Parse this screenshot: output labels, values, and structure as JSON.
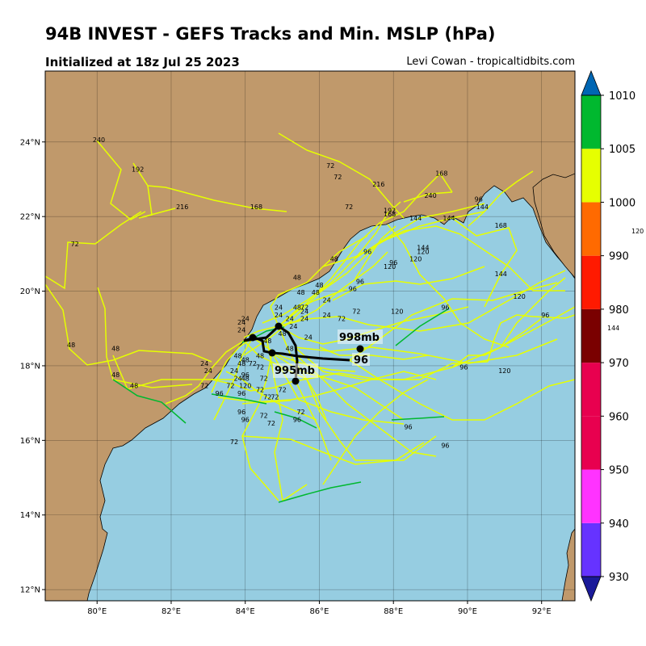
{
  "header": {
    "title": "94B INVEST - GEFS Tracks and Min. MSLP (hPa)",
    "init": "Initialized at 18z Jul 25 2023",
    "credit": "Levi Cowan - tropicaltidbits.com"
  },
  "colors": {
    "land": "#c0996b",
    "ocean": "#96cde1",
    "member_track": "#e6ff00",
    "mean_track": "#000000",
    "weak_segment": "#00b82f"
  },
  "map": {
    "lon_range": [
      78.6,
      92.9
    ],
    "lat_range": [
      11.7,
      25.9
    ],
    "lon_ticks": [
      "80°E",
      "82°E",
      "84°E",
      "86°E",
      "88°E",
      "90°E",
      "92°E"
    ],
    "lat_ticks": [
      "12°N",
      "14°N",
      "16°N",
      "18°N",
      "20°N",
      "22°N",
      "24°N"
    ],
    "grid": true,
    "mean_track_labels": [
      "998mb",
      "96",
      "995mb"
    ],
    "hour_labels": [
      {
        "t": "240",
        "lon": 80.05,
        "lat": 24.0
      },
      {
        "t": "192",
        "lon": 81.1,
        "lat": 23.2
      },
      {
        "t": "216",
        "lon": 82.3,
        "lat": 22.2
      },
      {
        "t": "168",
        "lon": 84.3,
        "lat": 22.2
      },
      {
        "t": "72",
        "lon": 79.4,
        "lat": 21.2
      },
      {
        "t": "48",
        "lon": 79.3,
        "lat": 18.5
      },
      {
        "t": "48",
        "lon": 80.5,
        "lat": 18.4
      },
      {
        "t": "48",
        "lon": 80.5,
        "lat": 17.7
      },
      {
        "t": "48",
        "lon": 81.0,
        "lat": 17.4
      },
      {
        "t": "24",
        "lon": 83.9,
        "lat": 18.9
      },
      {
        "t": "24",
        "lon": 83.9,
        "lat": 19.1
      },
      {
        "t": "24",
        "lon": 84.0,
        "lat": 19.2
      },
      {
        "t": "24",
        "lon": 82.9,
        "lat": 18.0
      },
      {
        "t": "24",
        "lon": 83.0,
        "lat": 17.8
      },
      {
        "t": "24",
        "lon": 83.7,
        "lat": 17.8
      },
      {
        "t": "72",
        "lon": 82.9,
        "lat": 17.4
      },
      {
        "t": "72",
        "lon": 83.6,
        "lat": 17.4
      },
      {
        "t": "96",
        "lon": 83.3,
        "lat": 17.2
      },
      {
        "t": "96",
        "lon": 83.9,
        "lat": 17.2
      },
      {
        "t": "96",
        "lon": 83.9,
        "lat": 16.7
      },
      {
        "t": "96",
        "lon": 84.0,
        "lat": 16.5
      },
      {
        "t": "72",
        "lon": 84.5,
        "lat": 16.6
      },
      {
        "t": "72",
        "lon": 84.7,
        "lat": 16.4
      },
      {
        "t": "72",
        "lon": 83.7,
        "lat": 15.9
      },
      {
        "t": "72",
        "lon": 84.8,
        "lat": 17.1
      },
      {
        "t": "72",
        "lon": 85.5,
        "lat": 16.7
      },
      {
        "t": "96",
        "lon": 85.4,
        "lat": 16.5
      },
      {
        "t": "72",
        "lon": 85.0,
        "lat": 17.3
      },
      {
        "t": "48",
        "lon": 84.4,
        "lat": 18.2
      },
      {
        "t": "48",
        "lon": 84.0,
        "lat": 18.1
      },
      {
        "t": "48",
        "lon": 84.0,
        "lat": 17.6
      },
      {
        "t": "24",
        "lon": 83.8,
        "lat": 17.6
      },
      {
        "t": "120",
        "lon": 84.0,
        "lat": 17.4
      },
      {
        "t": "72",
        "lon": 84.4,
        "lat": 17.9
      },
      {
        "t": "72",
        "lon": 84.5,
        "lat": 17.6
      },
      {
        "t": "72",
        "lon": 84.4,
        "lat": 17.3
      },
      {
        "t": "48",
        "lon": 84.6,
        "lat": 18.6
      },
      {
        "t": "48",
        "lon": 85.0,
        "lat": 18.8
      },
      {
        "t": "48",
        "lon": 85.2,
        "lat": 18.4
      },
      {
        "t": "24",
        "lon": 84.9,
        "lat": 19.3
      },
      {
        "t": "24",
        "lon": 84.9,
        "lat": 19.5
      },
      {
        "t": "24",
        "lon": 85.3,
        "lat": 19.0
      },
      {
        "t": "24",
        "lon": 85.6,
        "lat": 19.2
      },
      {
        "t": "24",
        "lon": 86.2,
        "lat": 19.3
      },
      {
        "t": "24",
        "lon": 86.2,
        "lat": 19.7
      },
      {
        "t": "24",
        "lon": 85.7,
        "lat": 18.7
      },
      {
        "t": "48",
        "lon": 85.5,
        "lat": 19.9
      },
      {
        "t": "48",
        "lon": 85.4,
        "lat": 20.3
      },
      {
        "t": "48",
        "lon": 85.9,
        "lat": 19.9
      },
      {
        "t": "48",
        "lon": 86.0,
        "lat": 20.1
      },
      {
        "t": "48",
        "lon": 86.4,
        "lat": 20.8
      },
      {
        "t": "48",
        "lon": 85.4,
        "lat": 19.5
      },
      {
        "t": "24",
        "lon": 85.2,
        "lat": 19.2
      },
      {
        "t": "24",
        "lon": 85.6,
        "lat": 19.4
      },
      {
        "t": "72",
        "lon": 86.6,
        "lat": 19.2
      },
      {
        "t": "72",
        "lon": 87.0,
        "lat": 19.4
      },
      {
        "t": "96",
        "lon": 86.9,
        "lat": 20.0
      },
      {
        "t": "96",
        "lon": 87.1,
        "lat": 20.2
      },
      {
        "t": "96",
        "lon": 87.3,
        "lat": 21.0
      },
      {
        "t": "96",
        "lon": 88.0,
        "lat": 20.7
      },
      {
        "t": "120",
        "lon": 87.9,
        "lat": 20.6
      },
      {
        "t": "120",
        "lon": 88.1,
        "lat": 19.4
      },
      {
        "t": "120",
        "lon": 88.6,
        "lat": 20.8
      },
      {
        "t": "120",
        "lon": 88.8,
        "lat": 21.0
      },
      {
        "t": "144",
        "lon": 88.8,
        "lat": 21.1
      },
      {
        "t": "144",
        "lon": 88.6,
        "lat": 21.9
      },
      {
        "t": "144",
        "lon": 89.5,
        "lat": 21.9
      },
      {
        "t": "168",
        "lon": 90.9,
        "lat": 21.7
      },
      {
        "t": "144",
        "lon": 90.9,
        "lat": 20.4
      },
      {
        "t": "120",
        "lon": 91.4,
        "lat": 19.8
      },
      {
        "t": "96",
        "lon": 92.1,
        "lat": 19.3
      },
      {
        "t": "96",
        "lon": 89.4,
        "lat": 19.5
      },
      {
        "t": "96",
        "lon": 89.9,
        "lat": 17.9
      },
      {
        "t": "120",
        "lon": 91.0,
        "lat": 17.8
      },
      {
        "t": "96",
        "lon": 89.4,
        "lat": 15.8
      },
      {
        "t": "96",
        "lon": 88.4,
        "lat": 16.3
      },
      {
        "t": "72",
        "lon": 85.6,
        "lat": 19.5
      },
      {
        "t": "72",
        "lon": 86.3,
        "lat": 23.3
      },
      {
        "t": "72",
        "lon": 86.5,
        "lat": 23.0
      },
      {
        "t": "72",
        "lon": 86.8,
        "lat": 22.2
      },
      {
        "t": "216",
        "lon": 87.6,
        "lat": 22.8
      },
      {
        "t": "192",
        "lon": 87.9,
        "lat": 22.1
      },
      {
        "t": "168",
        "lon": 87.9,
        "lat": 22.0
      },
      {
        "t": "240",
        "lon": 89.0,
        "lat": 22.5
      },
      {
        "t": "168",
        "lon": 89.3,
        "lat": 23.1
      },
      {
        "t": "96",
        "lon": 90.3,
        "lat": 22.4
      },
      {
        "t": "144",
        "lon": 90.4,
        "lat": 22.2
      },
      {
        "t": "48",
        "lon": 83.8,
        "lat": 18.2
      },
      {
        "t": "48",
        "lon": 83.9,
        "lat": 18.0
      },
      {
        "t": "72",
        "lon": 84.2,
        "lat": 18.0
      },
      {
        "t": "72",
        "lon": 84.6,
        "lat": 17.1
      },
      {
        "t": "96",
        "lon": 84.0,
        "lat": 17.7
      }
    ]
  },
  "colorbar": {
    "ticks": [
      "930",
      "940",
      "950",
      "960",
      "970",
      "980",
      "990",
      "1000",
      "1005",
      "1010"
    ],
    "bands": [
      "#6633ff",
      "#ff33ff",
      "#ff0066",
      "#ff0066",
      "#ff0066",
      "#7a0000",
      "#ff1a00",
      "#ff6a00",
      "#e6ff00",
      "#00b82f",
      "#00b3bd",
      "#0066b3"
    ]
  },
  "stray_labels": [
    "120",
    "144"
  ]
}
